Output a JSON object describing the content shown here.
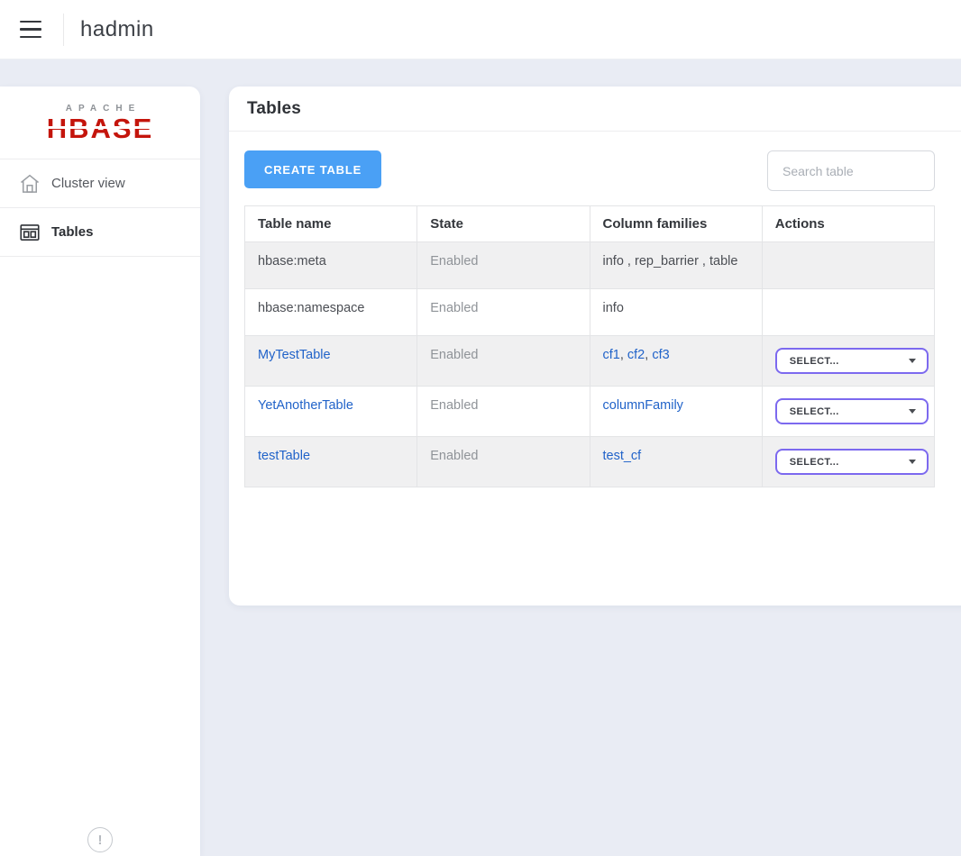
{
  "topbar": {
    "title": "hadmin"
  },
  "sidebar": {
    "logo_top": "APACHE",
    "logo_main": "HBASE",
    "items": [
      {
        "label": "Cluster view",
        "icon": "home-icon",
        "active": false
      },
      {
        "label": "Tables",
        "icon": "table-icon",
        "active": true
      }
    ],
    "footer_icon": "info-exclamation-icon",
    "footer_glyph": "!"
  },
  "main": {
    "card_title": "Tables",
    "create_button": "CREATE TABLE",
    "search_placeholder": "Search table",
    "table": {
      "headers": [
        "Table name",
        "State",
        "Column families",
        "Actions"
      ],
      "select_label": "SELECT...",
      "rows": [
        {
          "name": "hbase:meta",
          "name_is_link": false,
          "state": "Enabled",
          "families": [
            "info",
            "rep_barrier",
            "table"
          ],
          "families_are_links": false,
          "has_select": false
        },
        {
          "name": "hbase:namespace",
          "name_is_link": false,
          "state": "Enabled",
          "families": [
            "info"
          ],
          "families_are_links": false,
          "has_select": false
        },
        {
          "name": "MyTestTable",
          "name_is_link": true,
          "state": "Enabled",
          "families": [
            "cf1",
            "cf2",
            "cf3"
          ],
          "families_are_links": true,
          "has_select": true
        },
        {
          "name": "YetAnotherTable",
          "name_is_link": true,
          "state": "Enabled",
          "families": [
            "columnFamily"
          ],
          "families_are_links": true,
          "has_select": true
        },
        {
          "name": "testTable",
          "name_is_link": true,
          "state": "Enabled",
          "families": [
            "test_cf"
          ],
          "families_are_links": true,
          "has_select": true
        }
      ]
    }
  },
  "colors": {
    "accent_blue": "#4aa0f5",
    "link_blue": "#2163c9",
    "select_border_purple": "#7c69ef",
    "logo_red": "#c4150c",
    "page_background": "#e9ecf4",
    "row_stripe": "#f0f0f1"
  }
}
